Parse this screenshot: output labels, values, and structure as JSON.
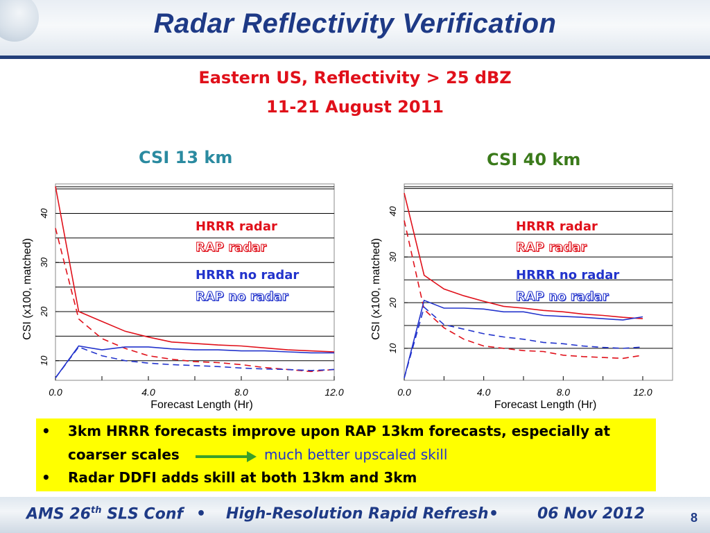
{
  "slide": {
    "title": "Radar Reflectivity Verification",
    "subtitle_line1": "Eastern US, Reflectivity > 25 dBZ",
    "subtitle_line2": "11-21 August 2011",
    "page_number": "8"
  },
  "colors": {
    "title": "#1e3a86",
    "red": "#e0101a",
    "blue": "#2233cc",
    "panel_left": "#2a8aa0",
    "panel_right": "#3a7a1a",
    "highlight": "#ffff00",
    "arrow": "#3aa02a"
  },
  "legend": {
    "hrrr_radar": "HRRR radar",
    "rap_radar": "RAP radar",
    "hrrr_no_radar": "HRRR no radar",
    "rap_no_radar": "RAP no radar"
  },
  "chart_data": [
    {
      "type": "line",
      "title": "CSI 13 km",
      "xlabel": "Forecast Length (Hr)",
      "ylabel": "CSI (x100, matched)",
      "xlim": [
        0,
        12
      ],
      "ylim": [
        6,
        46
      ],
      "xticks": [
        "0.0",
        "4.0",
        "8.0",
        "12.0"
      ],
      "yticks": [
        "10",
        "20",
        "30",
        "40"
      ],
      "grid": "horizontal",
      "x": [
        0,
        1,
        2,
        3,
        4,
        5,
        6,
        7,
        8,
        9,
        10,
        11,
        12
      ],
      "series": [
        {
          "name": "HRRR radar",
          "color": "#e0101a",
          "dash": false,
          "values": [
            45.5,
            20,
            18,
            16,
            14.8,
            13.8,
            13.5,
            13.2,
            13,
            12.6,
            12.2,
            12,
            11.8
          ]
        },
        {
          "name": "RAP radar",
          "color": "#e0101a",
          "dash": true,
          "values": [
            37,
            18.5,
            14.5,
            12.5,
            11,
            10.3,
            9.8,
            9.6,
            9.2,
            8.6,
            8.2,
            7.8,
            8.2
          ]
        },
        {
          "name": "HRRR no radar",
          "color": "#2233cc",
          "dash": false,
          "values": [
            6.5,
            13,
            12.2,
            12.8,
            12.8,
            12.4,
            12.2,
            12.2,
            12,
            12,
            11.8,
            11.6,
            11.6
          ]
        },
        {
          "name": "RAP no radar",
          "color": "#2233cc",
          "dash": true,
          "values": [
            6.5,
            12.8,
            11,
            10,
            9.5,
            9.2,
            9,
            8.8,
            8.5,
            8.3,
            8.2,
            8,
            8.2
          ]
        }
      ]
    },
    {
      "type": "line",
      "title": "CSI 40 km",
      "xlabel": "Forecast Length (Hr)",
      "ylabel": "CSI (x100, matched)",
      "xlim": [
        0,
        13.5
      ],
      "ylim": [
        3,
        46
      ],
      "xticks": [
        "0.0",
        "4.0",
        "8.0",
        "12.0"
      ],
      "yticks": [
        "10",
        "20",
        "30",
        "40"
      ],
      "grid": "horizontal",
      "x": [
        0,
        1,
        2,
        3,
        4,
        5,
        6,
        7,
        8,
        9,
        10,
        11,
        12
      ],
      "series": [
        {
          "name": "HRRR radar",
          "color": "#e0101a",
          "dash": false,
          "values": [
            44,
            26,
            23,
            21.5,
            20.3,
            19.2,
            18.8,
            18.3,
            18,
            17.5,
            17.2,
            16.8,
            16.5
          ]
        },
        {
          "name": "RAP radar",
          "color": "#e0101a",
          "dash": true,
          "values": [
            38,
            18.5,
            14.5,
            12,
            10.5,
            10,
            9.5,
            9.3,
            8.5,
            8.2,
            8,
            7.8,
            8.5
          ]
        },
        {
          "name": "HRRR no radar",
          "color": "#2233cc",
          "dash": false,
          "values": [
            3.5,
            20.5,
            18.8,
            18.8,
            18.6,
            18,
            18,
            17.2,
            17,
            16.8,
            16.5,
            16.2,
            16.9
          ]
        },
        {
          "name": "RAP no radar",
          "color": "#2233cc",
          "dash": true,
          "values": [
            3.5,
            19,
            15.2,
            14.2,
            13.2,
            12.5,
            12,
            11.3,
            11,
            10.5,
            10.2,
            10,
            10.3
          ]
        }
      ]
    }
  ],
  "notes": {
    "bullet_symbol": "•",
    "b1_line1": "3km HRRR forecasts improve upon RAP 13km forecasts, especially at",
    "b1_line2": "coarser scales",
    "b1_highlight": "much better upscaled skill",
    "b2": "Radar DDFI adds skill at both 13km and 3km"
  },
  "footer": {
    "conf": "AMS 26",
    "conf_sup": "th",
    "conf_rest": " SLS Conf",
    "sep": "•",
    "middle": "High-Resolution Rapid Refresh",
    "date": "06 Nov 2012"
  }
}
